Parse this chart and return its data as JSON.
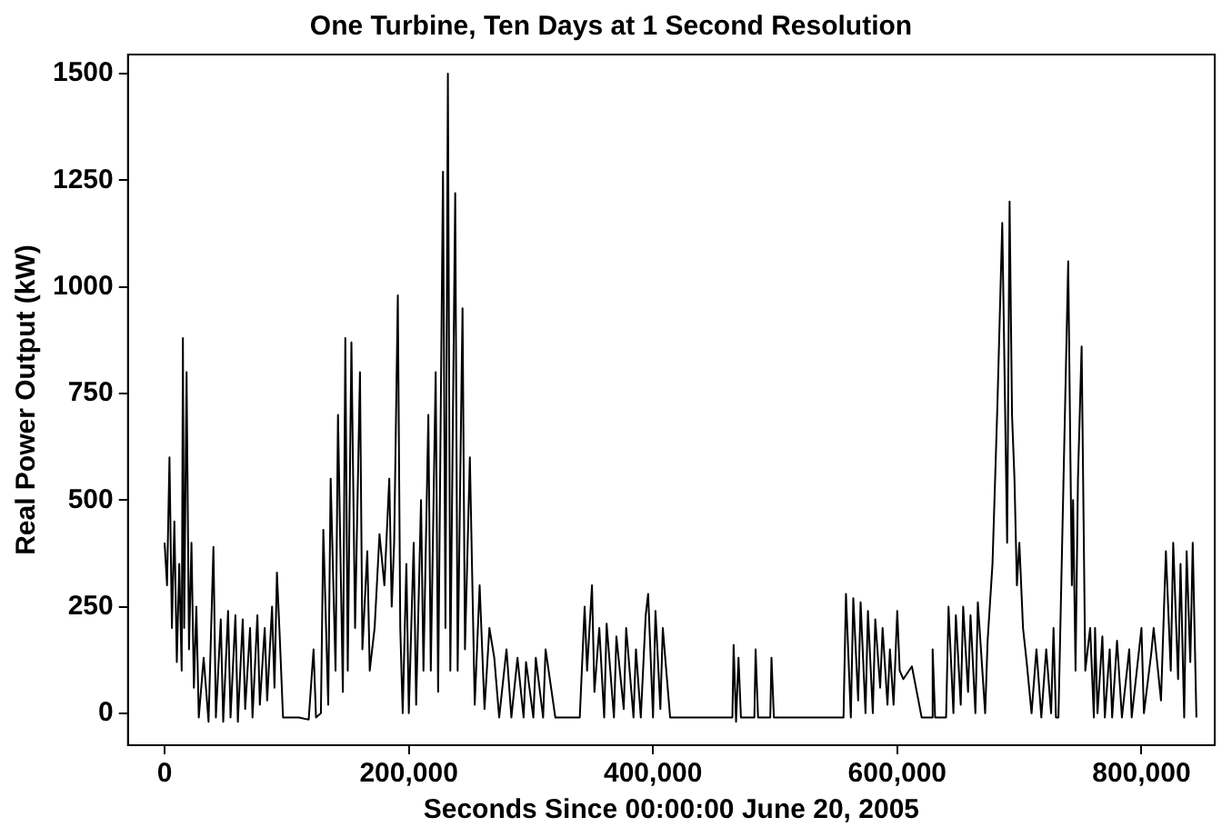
{
  "chart_data": {
    "type": "line",
    "title": "One Turbine, Ten Days at 1 Second Resolution",
    "xlabel": "Seconds Since 00:00:00 June 20, 2005",
    "ylabel": "Real Power Output (kW)",
    "xlim": [
      -30000,
      860000
    ],
    "ylim": [
      -75,
      1545
    ],
    "xticks": [
      0,
      {
        "value": 200000,
        "label": "200,000"
      },
      {
        "value": 400000,
        "label": "400,000"
      },
      {
        "value": 600000,
        "label": "600,000"
      },
      {
        "value": 800000,
        "label": "800,000"
      }
    ],
    "yticks": [
      0,
      250,
      500,
      750,
      1000,
      1250,
      1500
    ],
    "grid": false,
    "legend": false,
    "marker": "none",
    "line_style": "solid",
    "series": [
      {
        "color": "#000000",
        "x": [
          0,
          2000,
          4000,
          6000,
          8000,
          10000,
          12000,
          14000,
          15000,
          16000,
          18000,
          20000,
          22000,
          24000,
          26000,
          28000,
          32000,
          36000,
          40000,
          42000,
          46000,
          48000,
          52000,
          54000,
          58000,
          60000,
          64000,
          66000,
          70000,
          72000,
          76000,
          78000,
          82000,
          84000,
          88000,
          90000,
          92000,
          94000,
          97000,
          110000,
          118000,
          122000,
          124000,
          128000,
          130000,
          134000,
          136000,
          140000,
          142000,
          146000,
          148000,
          150000,
          153000,
          156000,
          160000,
          162000,
          166000,
          168000,
          172000,
          176000,
          180000,
          184000,
          186000,
          188000,
          191000,
          193000,
          195000,
          198000,
          200000,
          204000,
          206000,
          210000,
          212000,
          216000,
          218000,
          222000,
          224000,
          228000,
          230000,
          232000,
          234000,
          238000,
          240000,
          244000,
          246000,
          250000,
          254000,
          258000,
          262000,
          266000,
          270000,
          274000,
          280000,
          284000,
          289000,
          294000,
          296000,
          302000,
          304000,
          310000,
          312000,
          320000,
          340000,
          344000,
          346000,
          350000,
          352000,
          356000,
          360000,
          362000,
          368000,
          370000,
          376000,
          378000,
          384000,
          386000,
          390000,
          394000,
          396000,
          400000,
          402000,
          406000,
          408000,
          414000,
          420000,
          465000,
          466000,
          468000,
          470000,
          472000,
          483000,
          484000,
          486000,
          496000,
          497000,
          499000,
          556000,
          558000,
          562000,
          564000,
          568000,
          570000,
          574000,
          576000,
          580000,
          582000,
          586000,
          588000,
          592000,
          594000,
          597000,
          600000,
          602000,
          605000,
          612000,
          620000,
          628000,
          629000,
          631000,
          640000,
          642000,
          646000,
          648000,
          652000,
          654000,
          658000,
          660000,
          664000,
          666000,
          672000,
          674000,
          678000,
          682000,
          686000,
          690000,
          692000,
          694000,
          696000,
          698000,
          700000,
          703000,
          706000,
          710000,
          714000,
          718000,
          722000,
          726000,
          728000,
          730000,
          732000,
          740000,
          743000,
          744000,
          746000,
          748000,
          751000,
          754000,
          758000,
          761000,
          762000,
          764000,
          768000,
          770000,
          774000,
          776000,
          780000,
          784000,
          790000,
          792000,
          800000,
          802000,
          808000,
          810000,
          816000,
          820000,
          824000,
          826000,
          830000,
          832000,
          835000,
          837000,
          840000,
          842000,
          845000
        ],
        "values": [
          400,
          300,
          600,
          200,
          450,
          120,
          350,
          100,
          880,
          200,
          800,
          150,
          400,
          60,
          250,
          -10,
          130,
          -20,
          390,
          -10,
          220,
          -20,
          240,
          -10,
          230,
          -20,
          220,
          10,
          200,
          -10,
          230,
          20,
          200,
          30,
          250,
          60,
          330,
          200,
          -10,
          -10,
          -15,
          150,
          -10,
          0,
          430,
          20,
          550,
          100,
          700,
          50,
          880,
          100,
          870,
          200,
          800,
          150,
          380,
          100,
          200,
          420,
          300,
          550,
          250,
          400,
          980,
          200,
          0,
          350,
          0,
          400,
          20,
          500,
          100,
          700,
          100,
          800,
          50,
          1270,
          200,
          1500,
          100,
          1220,
          100,
          950,
          150,
          600,
          20,
          300,
          10,
          200,
          130,
          -10,
          150,
          -10,
          130,
          -10,
          120,
          -10,
          130,
          -10,
          150,
          -10,
          -10,
          250,
          100,
          300,
          50,
          200,
          -10,
          210,
          -10,
          180,
          10,
          200,
          -10,
          150,
          -10,
          230,
          280,
          -10,
          240,
          10,
          200,
          -10,
          -10,
          -10,
          160,
          -20,
          130,
          -10,
          -10,
          150,
          -10,
          -10,
          130,
          -10,
          -10,
          280,
          -10,
          270,
          30,
          260,
          0,
          240,
          0,
          220,
          60,
          200,
          20,
          150,
          20,
          240,
          100,
          80,
          110,
          -10,
          -10,
          150,
          -10,
          -10,
          250,
          0,
          230,
          20,
          250,
          50,
          230,
          0,
          260,
          0,
          170,
          350,
          720,
          1150,
          400,
          1200,
          700,
          550,
          300,
          400,
          200,
          120,
          0,
          150,
          -10,
          150,
          0,
          200,
          -10,
          -10,
          1060,
          300,
          500,
          100,
          550,
          860,
          100,
          200,
          -10,
          200,
          0,
          180,
          -10,
          150,
          -10,
          170,
          -10,
          150,
          -10,
          200,
          0,
          140,
          200,
          30,
          380,
          100,
          400,
          80,
          350,
          -10,
          380,
          120,
          400,
          -10
        ]
      }
    ]
  }
}
